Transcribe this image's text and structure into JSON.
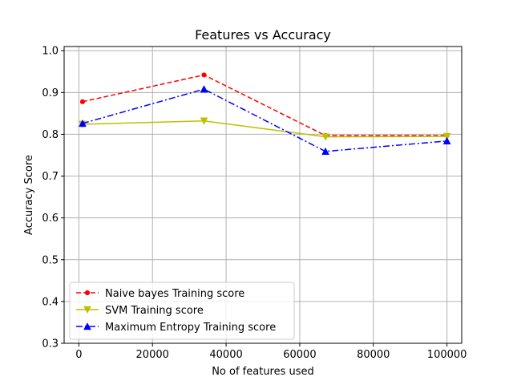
{
  "chart_data": {
    "type": "line",
    "title": "Features vs Accuracy",
    "xlabel": "No of features used",
    "ylabel": "Accuracy Score",
    "xlim": [
      -4000,
      104000
    ],
    "ylim": [
      0.3,
      1.01
    ],
    "x_ticks": [
      0,
      20000,
      40000,
      60000,
      80000,
      100000
    ],
    "y_ticks": [
      0.3,
      0.4,
      0.5,
      0.6,
      0.7,
      0.8,
      0.9,
      1.0
    ],
    "x_tick_labels": [
      "0",
      "20000",
      "40000",
      "60000",
      "80000",
      "100000"
    ],
    "y_tick_labels": [
      "0.3",
      "0.4",
      "0.5",
      "0.6",
      "0.7",
      "0.8",
      "0.9",
      "1.0"
    ],
    "grid": true,
    "legend_position": "lower-left",
    "series": [
      {
        "name": "Naive bayes Training score",
        "color": "#ff0000",
        "linestyle": "dashed",
        "marker": "dot",
        "x": [
          1000,
          34000,
          67000,
          100000
        ],
        "y": [
          0.878,
          0.942,
          0.797,
          0.797
        ]
      },
      {
        "name": "SVM Training score",
        "color": "#bfbf00",
        "linestyle": "solid",
        "marker": "triangle-down",
        "x": [
          1000,
          34000,
          67000,
          100000
        ],
        "y": [
          0.824,
          0.832,
          0.794,
          0.795
        ]
      },
      {
        "name": "Maximum Entropy Training score",
        "color": "#0000ff",
        "linestyle": "dashdot",
        "marker": "triangle-up",
        "x": [
          1000,
          34000,
          67000,
          100000
        ],
        "y": [
          0.826,
          0.908,
          0.759,
          0.784
        ]
      }
    ]
  }
}
